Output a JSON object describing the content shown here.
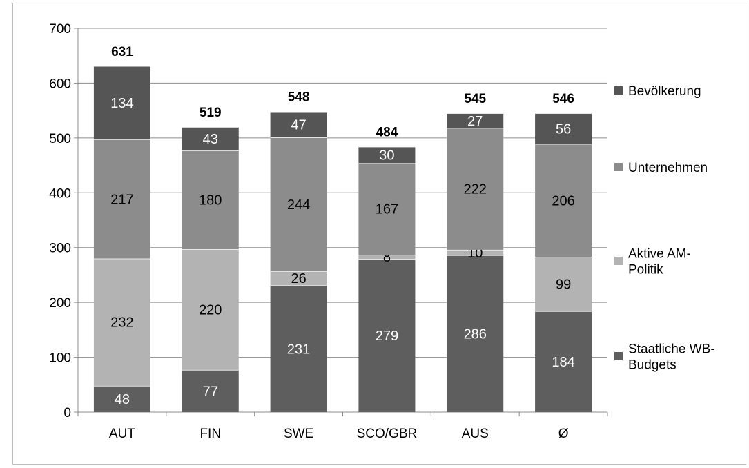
{
  "chart_data": {
    "type": "bar",
    "stacked": true,
    "categories": [
      "AUT",
      "FIN",
      "SWE",
      "SCO/GBR",
      "AUS",
      "Ø"
    ],
    "series": [
      {
        "name": "Staatliche WB-Budgets",
        "values": [
          48,
          77,
          231,
          279,
          286,
          184
        ],
        "color": "#5e5e5e",
        "label_color": "#ffffff"
      },
      {
        "name": "Aktive AM-Politik",
        "values": [
          232,
          220,
          26,
          8,
          10,
          99
        ],
        "color": "#b3b3b3",
        "label_color": "#000000"
      },
      {
        "name": "Unternehmen",
        "values": [
          217,
          180,
          244,
          167,
          222,
          206
        ],
        "color": "#8c8c8c",
        "label_color": "#000000"
      },
      {
        "name": "Bevölkerung",
        "values": [
          134,
          43,
          47,
          30,
          27,
          56
        ],
        "color": "#555555",
        "label_color": "#ffffff"
      }
    ],
    "totals": [
      631,
      519,
      548,
      484,
      545,
      546
    ],
    "title": "",
    "xlabel": "",
    "ylabel": "",
    "ylim": [
      0,
      700
    ],
    "yticks": [
      0,
      100,
      200,
      300,
      400,
      500,
      600,
      700
    ],
    "grid": true,
    "legend": {
      "position": "right",
      "entries": [
        {
          "series": "Bevölkerung",
          "lines": [
            "Bevölkerung"
          ]
        },
        {
          "series": "Unternehmen",
          "lines": [
            "Unternehmen"
          ]
        },
        {
          "series": "Aktive AM-Politik",
          "lines": [
            "Aktive AM-",
            "Politik"
          ]
        },
        {
          "series": "Staatliche WB-Budgets",
          "lines": [
            "Staatliche WB-",
            "Budgets"
          ]
        }
      ]
    }
  }
}
